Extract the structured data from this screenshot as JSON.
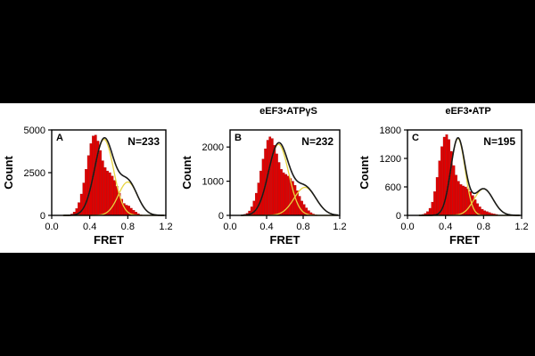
{
  "colors": {
    "page_background": "#000000",
    "figure_background": "#ffffff",
    "bar_fill": "#e00000",
    "bar_edge": "#990000",
    "fit_total": "#1a1a1a",
    "fit_component": "#e8d440",
    "text": "#000000"
  },
  "chart_data": [
    {
      "type": "bar",
      "panel_letter": "A",
      "title": "",
      "count_annotation": "N=233",
      "xlabel": "FRET",
      "ylabel": "Count",
      "xlim": [
        0.0,
        1.2
      ],
      "ylim": [
        0,
        5000
      ],
      "xticks": [
        0.0,
        0.4,
        0.8,
        1.2
      ],
      "xtick_labels": [
        "0.0",
        "0.4",
        "0.8",
        "1.2"
      ],
      "yticks": [
        0,
        2500,
        5000
      ],
      "ytick_labels": [
        "0",
        "2500",
        "5000"
      ],
      "grid": false,
      "histogram": {
        "bin_start": 0.1,
        "bin_width": 0.025,
        "counts": [
          0,
          0,
          0,
          40,
          80,
          200,
          400,
          750,
          1250,
          1900,
          2700,
          3500,
          4200,
          4650,
          4700,
          4350,
          3800,
          3200,
          2800,
          2600,
          2500,
          2300,
          2050,
          1700,
          1300,
          950,
          700,
          600,
          550,
          420,
          300,
          200,
          100,
          40
        ]
      },
      "fit": {
        "components": [
          {
            "mean": 0.55,
            "sd": 0.1,
            "height": 4450
          },
          {
            "mean": 0.8,
            "sd": 0.1,
            "height": 1950
          }
        ]
      }
    },
    {
      "type": "bar",
      "panel_letter": "B",
      "title": "eEF3•ATPγS",
      "count_annotation": "N=232",
      "xlabel": "FRET",
      "ylabel": "Count",
      "xlim": [
        0.0,
        1.2
      ],
      "ylim": [
        0,
        2500
      ],
      "xticks": [
        0.0,
        0.4,
        0.8,
        1.2
      ],
      "xtick_labels": [
        "0.0",
        "0.4",
        "0.8",
        "1.2"
      ],
      "yticks": [
        0,
        1000,
        2000
      ],
      "ytick_labels": [
        "0",
        "1000",
        "2000"
      ],
      "grid": false,
      "histogram": {
        "bin_start": 0.1,
        "bin_width": 0.025,
        "counts": [
          0,
          0,
          30,
          60,
          130,
          250,
          420,
          650,
          950,
          1300,
          1650,
          1950,
          2200,
          2300,
          2250,
          2050,
          1800,
          1550,
          1350,
          1250,
          1200,
          1150,
          1080,
          1000,
          880,
          720,
          560,
          420,
          320,
          220,
          140,
          80,
          40,
          20
        ]
      },
      "fit": {
        "components": [
          {
            "mean": 0.53,
            "sd": 0.11,
            "height": 2080
          },
          {
            "mean": 0.82,
            "sd": 0.12,
            "height": 820
          }
        ]
      }
    },
    {
      "type": "bar",
      "panel_letter": "C",
      "title": "eEF3•ATP",
      "count_annotation": "N=195",
      "xlabel": "FRET",
      "ylabel": "Count",
      "xlim": [
        0.0,
        1.2
      ],
      "ylim": [
        0,
        1800
      ],
      "xticks": [
        0.0,
        0.4,
        0.8,
        1.2
      ],
      "xtick_labels": [
        "0.0",
        "0.4",
        "0.8",
        "1.2"
      ],
      "yticks": [
        0,
        600,
        1200,
        1800
      ],
      "ytick_labels": [
        "0",
        "600",
        "1200",
        "1800"
      ],
      "grid": false,
      "histogram": {
        "bin_start": 0.1,
        "bin_width": 0.025,
        "counts": [
          0,
          0,
          20,
          40,
          80,
          150,
          280,
          500,
          800,
          1150,
          1450,
          1650,
          1700,
          1600,
          1350,
          1050,
          850,
          720,
          650,
          620,
          600,
          560,
          500,
          420,
          330,
          250,
          180,
          130,
          100,
          80,
          60,
          40,
          30,
          20
        ]
      },
      "fit": {
        "components": [
          {
            "mean": 0.53,
            "sd": 0.075,
            "height": 1620
          },
          {
            "mean": 0.8,
            "sd": 0.1,
            "height": 560
          }
        ]
      }
    }
  ]
}
